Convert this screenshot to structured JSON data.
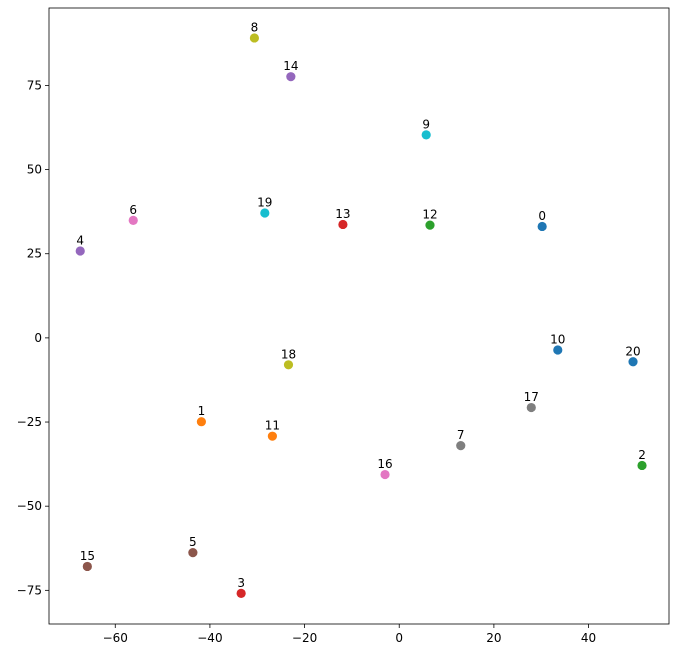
{
  "chart_data": {
    "type": "scatter",
    "title": "",
    "xlabel": "",
    "ylabel": "",
    "xlim": [
      -74,
      57
    ],
    "ylim": [
      -85,
      98
    ],
    "grid": false,
    "xticks": [
      -60,
      -40,
      -20,
      0,
      20,
      40
    ],
    "yticks": [
      -75,
      -50,
      -25,
      0,
      25,
      50,
      75
    ],
    "xtick_labels": [
      "−60",
      "−40",
      "−20",
      "0",
      "20",
      "40"
    ],
    "ytick_labels": [
      "−75",
      "−50",
      "−25",
      "0",
      "25",
      "50",
      "75"
    ],
    "points": [
      {
        "label": "0",
        "x": 30.2,
        "y": 33.1,
        "color": "#1f77b4"
      },
      {
        "label": "1",
        "x": -41.8,
        "y": -24.9,
        "color": "#ff7f0e"
      },
      {
        "label": "2",
        "x": 51.3,
        "y": -37.9,
        "color": "#2ca02c"
      },
      {
        "label": "3",
        "x": -33.4,
        "y": -75.9,
        "color": "#d62728"
      },
      {
        "label": "4",
        "x": -67.4,
        "y": 25.8,
        "color": "#9467bd"
      },
      {
        "label": "5",
        "x": -43.6,
        "y": -63.8,
        "color": "#8c564b"
      },
      {
        "label": "6",
        "x": -56.2,
        "y": 34.9,
        "color": "#e377c2"
      },
      {
        "label": "7",
        "x": 13.0,
        "y": -32.0,
        "color": "#7f7f7f"
      },
      {
        "label": "8",
        "x": -30.6,
        "y": 89.1,
        "color": "#bcbd22"
      },
      {
        "label": "9",
        "x": 5.7,
        "y": 60.3,
        "color": "#17becf"
      },
      {
        "label": "10",
        "x": 33.5,
        "y": -3.6,
        "color": "#1f77b4"
      },
      {
        "label": "11",
        "x": -26.8,
        "y": -29.2,
        "color": "#ff7f0e"
      },
      {
        "label": "12",
        "x": 6.5,
        "y": 33.5,
        "color": "#2ca02c"
      },
      {
        "label": "13",
        "x": -11.9,
        "y": 33.7,
        "color": "#d62728"
      },
      {
        "label": "14",
        "x": -22.9,
        "y": 77.6,
        "color": "#9467bd"
      },
      {
        "label": "15",
        "x": -65.9,
        "y": -67.9,
        "color": "#8c564b"
      },
      {
        "label": "16",
        "x": -3.0,
        "y": -40.6,
        "color": "#e377c2"
      },
      {
        "label": "17",
        "x": 27.9,
        "y": -20.7,
        "color": "#7f7f7f"
      },
      {
        "label": "18",
        "x": -23.4,
        "y": -8.0,
        "color": "#bcbd22"
      },
      {
        "label": "19",
        "x": -28.4,
        "y": 37.1,
        "color": "#17becf"
      },
      {
        "label": "20",
        "x": 49.4,
        "y": -7.1,
        "color": "#1f77b4"
      }
    ]
  }
}
